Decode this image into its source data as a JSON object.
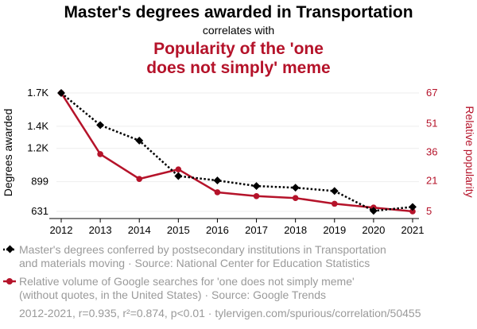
{
  "chart_data": {
    "type": "line",
    "title": "Master's degrees awarded in Transportation",
    "connector": "correlates with",
    "title2_lines": [
      "Popularity of the 'one",
      "does not simply' meme"
    ],
    "x": [
      "2012",
      "2013",
      "2014",
      "2015",
      "2016",
      "2017",
      "2018",
      "2019",
      "2020",
      "2021"
    ],
    "y_left": {
      "label": "Degrees awarded",
      "ticks": [
        631,
        899,
        1200,
        1400,
        1700
      ],
      "tick_labels": [
        "631",
        "899",
        "1.2K",
        "1.4K",
        "1.7K"
      ],
      "range": [
        631,
        1700
      ]
    },
    "y_right": {
      "label": "Relative popularity",
      "ticks": [
        5,
        21,
        36,
        51,
        67
      ],
      "tick_labels": [
        "5",
        "21",
        "36",
        "51",
        "67"
      ],
      "range": [
        5,
        67
      ]
    },
    "series": [
      {
        "name": "Master's degrees",
        "axis": "left",
        "color": "#000000",
        "style": "dotted",
        "marker": "diamond",
        "values": [
          1700,
          1410,
          1270,
          950,
          910,
          860,
          845,
          815,
          636,
          671
        ],
        "legend_lines": [
          "Master's degrees conferred by postsecondary institutions in Transportation",
          "and materials moving · Source: National Center for Education Statistics"
        ]
      },
      {
        "name": "Google searches",
        "axis": "right",
        "color": "#b5132a",
        "style": "solid",
        "marker": "circle",
        "values": [
          67,
          35,
          22,
          27,
          15,
          13,
          12,
          9,
          7,
          5
        ],
        "legend_lines": [
          "Relative volume of Google searches for 'one does not simply meme'",
          "(without quotes, in the United States) · Source: Google Trends"
        ]
      }
    ],
    "footer": "2012-2021, r=0.935, r²=0.874, p<0.01 · tylervigen.com/spurious/correlation/50455"
  }
}
